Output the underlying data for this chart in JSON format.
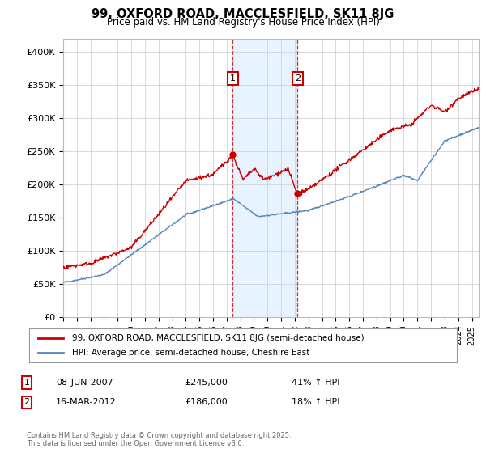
{
  "title": "99, OXFORD ROAD, MACCLESFIELD, SK11 8JG",
  "subtitle": "Price paid vs. HM Land Registry's House Price Index (HPI)",
  "legend_line1": "99, OXFORD ROAD, MACCLESFIELD, SK11 8JG (semi-detached house)",
  "legend_line2": "HPI: Average price, semi-detached house, Cheshire East",
  "annotation1_label": "1",
  "annotation1_date": "08-JUN-2007",
  "annotation1_price": "£245,000",
  "annotation1_hpi": "41% ↑ HPI",
  "annotation2_label": "2",
  "annotation2_date": "16-MAR-2012",
  "annotation2_price": "£186,000",
  "annotation2_hpi": "18% ↑ HPI",
  "footer": "Contains HM Land Registry data © Crown copyright and database right 2025.\nThis data is licensed under the Open Government Licence v3.0.",
  "red_color": "#cc0000",
  "blue_color": "#5588bb",
  "shade_color": "#ddeeff",
  "annotation_box_color": "#cc0000",
  "ylim": [
    0,
    420000
  ],
  "yticks": [
    0,
    50000,
    100000,
    150000,
    200000,
    250000,
    300000,
    350000,
    400000
  ],
  "ytick_labels": [
    "£0",
    "£50K",
    "£100K",
    "£150K",
    "£200K",
    "£250K",
    "£300K",
    "£350K",
    "£400K"
  ],
  "sale1_x": 2007.44,
  "sale1_y": 245000,
  "sale2_x": 2012.21,
  "sale2_y": 186000,
  "shade_x1": 2007.44,
  "shade_x2": 2012.21,
  "xmin": 1995,
  "xmax": 2025.5
}
